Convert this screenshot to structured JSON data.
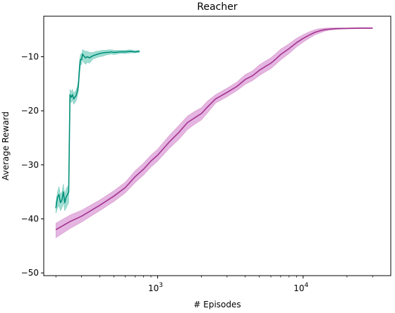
{
  "chart_data": {
    "type": "line",
    "title": "Reacher",
    "xlabel": "# Episodes",
    "ylabel": "Average Reward",
    "x_scale": "log",
    "xlim": [
      165,
      40000
    ],
    "ylim": [
      -50.5,
      -2.5
    ],
    "x_major_ticks": [
      {
        "value": 1000,
        "base": "10",
        "exp": "3"
      },
      {
        "value": 10000,
        "base": "10",
        "exp": "4"
      }
    ],
    "x_minor_ticks": [
      200,
      300,
      400,
      500,
      600,
      700,
      800,
      900,
      2000,
      3000,
      4000,
      5000,
      6000,
      7000,
      8000,
      9000,
      20000,
      30000
    ],
    "y_ticks": [
      -50,
      -40,
      -30,
      -20,
      -10
    ],
    "y_tick_labels": [
      "−50",
      "−40",
      "−30",
      "−20",
      "−10"
    ],
    "grid": false,
    "legend": "none",
    "series": [
      {
        "color": "#008f7a",
        "band_color": "#4fc1ac",
        "x": [
          200,
          205,
          210,
          215,
          220,
          225,
          230,
          235,
          240,
          245,
          250,
          255,
          260,
          265,
          270,
          275,
          280,
          285,
          290,
          295,
          300,
          305,
          310,
          315,
          320,
          330,
          340,
          350,
          360,
          380,
          400,
          420,
          440,
          460,
          480,
          500,
          550,
          600,
          650,
          700,
          750
        ],
        "y": [
          -38,
          -36,
          -35.5,
          -37,
          -36.5,
          -35,
          -37,
          -36,
          -35.5,
          -35,
          -17,
          -17.5,
          -17,
          -17.8,
          -17.5,
          -17.2,
          -16.5,
          -15.5,
          -12.5,
          -10.5,
          -10.5,
          -9.5,
          -9.8,
          -10,
          -10.2,
          -10,
          -10.2,
          -10,
          -9.8,
          -9.6,
          -9.4,
          -9.3,
          -9.2,
          -9.2,
          -9.1,
          -9.2,
          -9.1,
          -9.1,
          -9,
          -9.1,
          -9
        ],
        "lower": [
          -39,
          -38,
          -37.5,
          -38.5,
          -38,
          -37,
          -38.5,
          -38,
          -37.5,
          -37,
          -18,
          -18.5,
          -18,
          -18.8,
          -18.5,
          -18.2,
          -17.5,
          -16.5,
          -14,
          -11.5,
          -11.5,
          -10.5,
          -11,
          -11.2,
          -11.4,
          -11,
          -11.2,
          -10.8,
          -10.4,
          -10.2,
          -10,
          -9.9,
          -9.7,
          -9.6,
          -9.5,
          -9.6,
          -9.4,
          -9.4,
          -9.3,
          -9.3,
          -9.2
        ],
        "upper": [
          -37,
          -35,
          -34,
          -35.5,
          -35,
          -33.5,
          -35.5,
          -34.5,
          -34,
          -34,
          -16,
          -16.5,
          -16,
          -16.8,
          -16.5,
          -16.2,
          -15.5,
          -14.5,
          -11,
          -9.5,
          -9.5,
          -8.7,
          -8.8,
          -8.9,
          -9,
          -9,
          -9.2,
          -9.2,
          -9.2,
          -9,
          -8.9,
          -8.8,
          -8.8,
          -8.7,
          -8.7,
          -8.8,
          -8.8,
          -8.8,
          -8.7,
          -8.9,
          -8.8
        ]
      },
      {
        "color": "#a2338f",
        "band_color": "#cf79c8",
        "x": [
          200,
          250,
          300,
          400,
          500,
          600,
          700,
          800,
          900,
          1000,
          1200,
          1400,
          1600,
          1800,
          2000,
          2200,
          2500,
          3000,
          3500,
          4000,
          4500,
          5000,
          5500,
          6000,
          6500,
          7000,
          8000,
          9000,
          10000,
          11000,
          12000,
          13000,
          14000,
          15000,
          17000,
          20000,
          25000,
          30000
        ],
        "y": [
          -42,
          -40.5,
          -39.5,
          -37.5,
          -35.8,
          -34.2,
          -32.2,
          -30.8,
          -29.3,
          -28.2,
          -25.8,
          -24,
          -22.2,
          -21.3,
          -20.5,
          -19.3,
          -17.8,
          -16.6,
          -15.5,
          -14.2,
          -13.5,
          -12.5,
          -11.8,
          -11.2,
          -10.4,
          -9.6,
          -8.5,
          -7.4,
          -6.6,
          -6,
          -5.5,
          -5.2,
          -5,
          -4.9,
          -4.8,
          -4.75,
          -4.7,
          -4.7
        ],
        "lower": [
          -43.5,
          -41.8,
          -40.6,
          -38.5,
          -36.8,
          -35.2,
          -33.3,
          -31.9,
          -30.4,
          -29.3,
          -27,
          -25.3,
          -23.5,
          -22.5,
          -21.7,
          -20.4,
          -18.6,
          -17.4,
          -16.3,
          -15.1,
          -14.4,
          -13.5,
          -12.8,
          -12.2,
          -11.4,
          -10.6,
          -9.4,
          -8.2,
          -7.3,
          -6.6,
          -6,
          -5.6,
          -5.3,
          -5.1,
          -4.95,
          -4.85,
          -4.8,
          -4.8
        ],
        "upper": [
          -40.8,
          -39.3,
          -38.4,
          -36.5,
          -34.8,
          -33.2,
          -31.1,
          -29.7,
          -28.2,
          -27.1,
          -24.6,
          -22.7,
          -21,
          -20.1,
          -19.4,
          -18.2,
          -17,
          -15.8,
          -14.7,
          -13.3,
          -12.6,
          -11.5,
          -10.8,
          -10.2,
          -9.4,
          -8.6,
          -7.6,
          -6.6,
          -5.9,
          -5.4,
          -5,
          -4.8,
          -4.7,
          -4.65,
          -4.65,
          -4.65,
          -4.6,
          -4.6
        ]
      }
    ]
  }
}
